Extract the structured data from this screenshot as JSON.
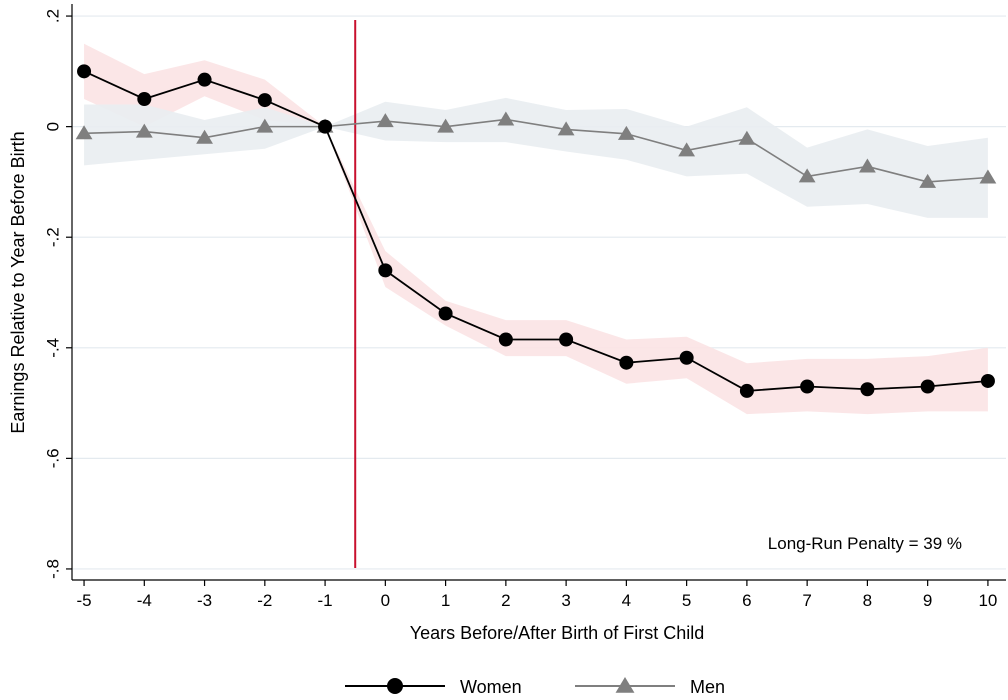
{
  "chart_data": {
    "type": "line",
    "title": "",
    "xlabel": "Years Before/After Birth of First Child",
    "ylabel": "Earnings Relative to Year Before Birth",
    "xlim": [
      -5.2,
      10.3
    ],
    "ylim": [
      -0.82,
      0.22
    ],
    "x_ticks": [
      -5,
      -4,
      -3,
      -2,
      -1,
      0,
      1,
      2,
      3,
      4,
      5,
      6,
      7,
      8,
      9,
      10
    ],
    "x_tick_labels": [
      "-5",
      "-4",
      "-3",
      "-2",
      "-1",
      "0",
      "1",
      "2",
      "3",
      "4",
      "5",
      "6",
      "7",
      "8",
      "9",
      "10"
    ],
    "y_ticks": [
      0.2,
      0,
      -0.2,
      -0.4,
      -0.6,
      -0.8
    ],
    "y_tick_labels": [
      ".2",
      "0",
      "-.2",
      "-.4",
      "-.6",
      "-.8"
    ],
    "grid": true,
    "vertical_line_x": -0.5,
    "annotation": "Long-Run Penalty = 39 %",
    "legend_placement": "bottom",
    "colors": {
      "women_line": "#000000",
      "women_band": "#fbe3e4",
      "men_line": "#7f7f7f",
      "men_band": "#e9edf1",
      "event_line": "#c8102e",
      "grid": "#e4eaef"
    },
    "x": [
      -5,
      -4,
      -3,
      -2,
      -1,
      0,
      1,
      2,
      3,
      4,
      5,
      6,
      7,
      8,
      9,
      10
    ],
    "series": [
      {
        "name": "Women",
        "marker": "circle",
        "values": [
          0.1,
          0.05,
          0.085,
          0.048,
          0.0,
          -0.26,
          -0.338,
          -0.385,
          -0.385,
          -0.427,
          -0.418,
          -0.478,
          -0.47,
          -0.475,
          -0.47,
          -0.46
        ],
        "ci_low": [
          0.05,
          0.0,
          0.055,
          0.012,
          0.0,
          -0.29,
          -0.36,
          -0.415,
          -0.415,
          -0.465,
          -0.455,
          -0.52,
          -0.515,
          -0.52,
          -0.515,
          -0.515
        ],
        "ci_high": [
          0.15,
          0.095,
          0.12,
          0.085,
          0.0,
          -0.225,
          -0.315,
          -0.35,
          -0.35,
          -0.385,
          -0.38,
          -0.428,
          -0.42,
          -0.42,
          -0.415,
          -0.4
        ]
      },
      {
        "name": "Men",
        "marker": "triangle",
        "values": [
          -0.012,
          -0.009,
          -0.02,
          0.0,
          0.0,
          0.01,
          0.0,
          0.013,
          -0.005,
          -0.013,
          -0.043,
          -0.022,
          -0.09,
          -0.072,
          -0.1,
          -0.092
        ],
        "ci_low": [
          -0.07,
          -0.06,
          -0.05,
          -0.04,
          0.0,
          -0.025,
          -0.028,
          -0.028,
          -0.045,
          -0.06,
          -0.09,
          -0.085,
          -0.145,
          -0.14,
          -0.165,
          -0.165
        ],
        "ci_high": [
          0.04,
          0.04,
          0.012,
          0.035,
          0.0,
          0.045,
          0.03,
          0.052,
          0.03,
          0.032,
          0.0,
          0.035,
          -0.038,
          -0.005,
          -0.035,
          -0.02
        ]
      }
    ]
  }
}
